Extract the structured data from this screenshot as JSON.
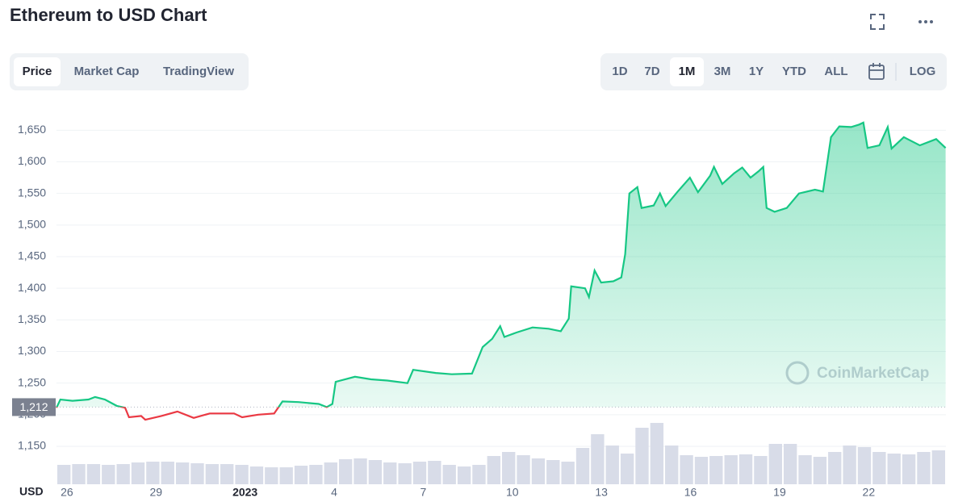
{
  "chart_data": {
    "type": "line",
    "title": "Ethereum to USD Chart",
    "tabs": [
      "Price",
      "Market Cap",
      "TradingView"
    ],
    "active_tab": 0,
    "ranges": [
      "1D",
      "7D",
      "1M",
      "3M",
      "1Y",
      "YTD",
      "ALL"
    ],
    "active_range": 2,
    "log_label": "LOG",
    "y_label": "USD",
    "watermark": "CoinMarketCap",
    "baseline": {
      "value": 1212,
      "label": "1,212"
    },
    "ylim": [
      1090,
      1690
    ],
    "yticks": [
      {
        "value": 1150,
        "label": "1,150"
      },
      {
        "value": 1200,
        "label": "1,200"
      },
      {
        "value": 1250,
        "label": "1,250"
      },
      {
        "value": 1300,
        "label": "1,300"
      },
      {
        "value": 1350,
        "label": "1,350"
      },
      {
        "value": 1400,
        "label": "1,400"
      },
      {
        "value": 1450,
        "label": "1,450"
      },
      {
        "value": 1500,
        "label": "1,500"
      },
      {
        "value": 1550,
        "label": "1,550"
      },
      {
        "value": 1600,
        "label": "1,600"
      },
      {
        "value": 1650,
        "label": "1,650"
      }
    ],
    "xlim": [
      -0.35,
      29.6
    ],
    "xticks": [
      {
        "value": 0,
        "label": "26"
      },
      {
        "value": 3,
        "label": "29"
      },
      {
        "value": 6,
        "label": "2023"
      },
      {
        "value": 9,
        "label": "4"
      },
      {
        "value": 12,
        "label": "7"
      },
      {
        "value": 15,
        "label": "10"
      },
      {
        "value": 18,
        "label": "13"
      },
      {
        "value": 21,
        "label": "16"
      },
      {
        "value": 24,
        "label": "19"
      },
      {
        "value": 27,
        "label": "22"
      }
    ],
    "grid": true,
    "up_color": "#16c784",
    "down_color": "#ea3943",
    "series": [
      {
        "x": [
          -0.35,
          -0.22,
          0.19,
          0.73,
          0.95,
          1.28,
          1.68,
          1.96,
          2.09,
          2.5,
          2.64,
          3.18,
          3.72,
          4.27,
          4.81,
          5.63,
          5.9,
          6.44,
          6.98,
          7.26,
          7.8,
          8.48,
          8.75,
          8.94,
          9.05,
          9.7,
          10.24,
          10.79,
          11.47,
          11.66,
          12.42,
          12.96,
          13.64,
          14.0,
          14.32,
          14.59,
          14.73,
          15.14,
          15.68,
          16.22,
          16.63,
          16.9,
          16.98,
          17.45,
          17.58,
          17.77,
          17.99,
          18.4,
          18.67,
          18.8,
          18.94,
          19.21,
          19.35,
          19.76,
          19.97,
          20.16,
          20.57,
          20.98,
          21.25,
          21.66,
          21.79,
          22.07,
          22.47,
          22.74,
          23.02,
          23.29,
          23.45,
          23.56,
          23.83,
          24.24,
          24.65,
          25.19,
          25.46,
          25.73,
          26.01,
          26.41,
          26.68,
          26.82,
          26.96,
          27.36,
          27.64,
          27.77,
          28.18,
          28.72,
          29.27,
          29.59
        ],
        "values": [
          1211,
          1224,
          1222,
          1224,
          1228,
          1224,
          1214,
          1211,
          1196,
          1198,
          1192,
          1198,
          1205,
          1195,
          1202,
          1202,
          1196,
          1200,
          1202,
          1221,
          1220,
          1217,
          1212,
          1217,
          1252,
          1260,
          1256,
          1254,
          1250,
          1271,
          1266,
          1264,
          1265,
          1307,
          1320,
          1340,
          1323,
          1330,
          1338,
          1336,
          1332,
          1352,
          1403,
          1400,
          1386,
          1428,
          1409,
          1411,
          1417,
          1454,
          1550,
          1560,
          1527,
          1531,
          1550,
          1530,
          1553,
          1575,
          1552,
          1578,
          1592,
          1565,
          1582,
          1591,
          1575,
          1585,
          1592,
          1527,
          1521,
          1527,
          1550,
          1556,
          1553,
          1639,
          1656,
          1655,
          1659,
          1662,
          1622,
          1626,
          1655,
          1621,
          1639,
          1626,
          1636,
          1622
        ]
      }
    ],
    "volume": [
      24,
      25,
      25,
      24,
      25,
      27,
      28,
      28,
      27,
      26,
      25,
      25,
      24,
      22,
      21,
      21,
      23,
      24,
      27,
      31,
      32,
      30,
      27,
      26,
      28,
      29,
      24,
      22,
      24,
      35,
      40,
      36,
      32,
      30,
      28,
      45,
      62,
      48,
      38,
      70,
      76,
      48,
      36,
      34,
      35,
      36,
      37,
      35,
      50,
      50,
      36,
      34,
      40,
      48,
      46,
      40,
      38,
      37,
      40,
      42
    ],
    "volume_color": "#d8dce8"
  }
}
